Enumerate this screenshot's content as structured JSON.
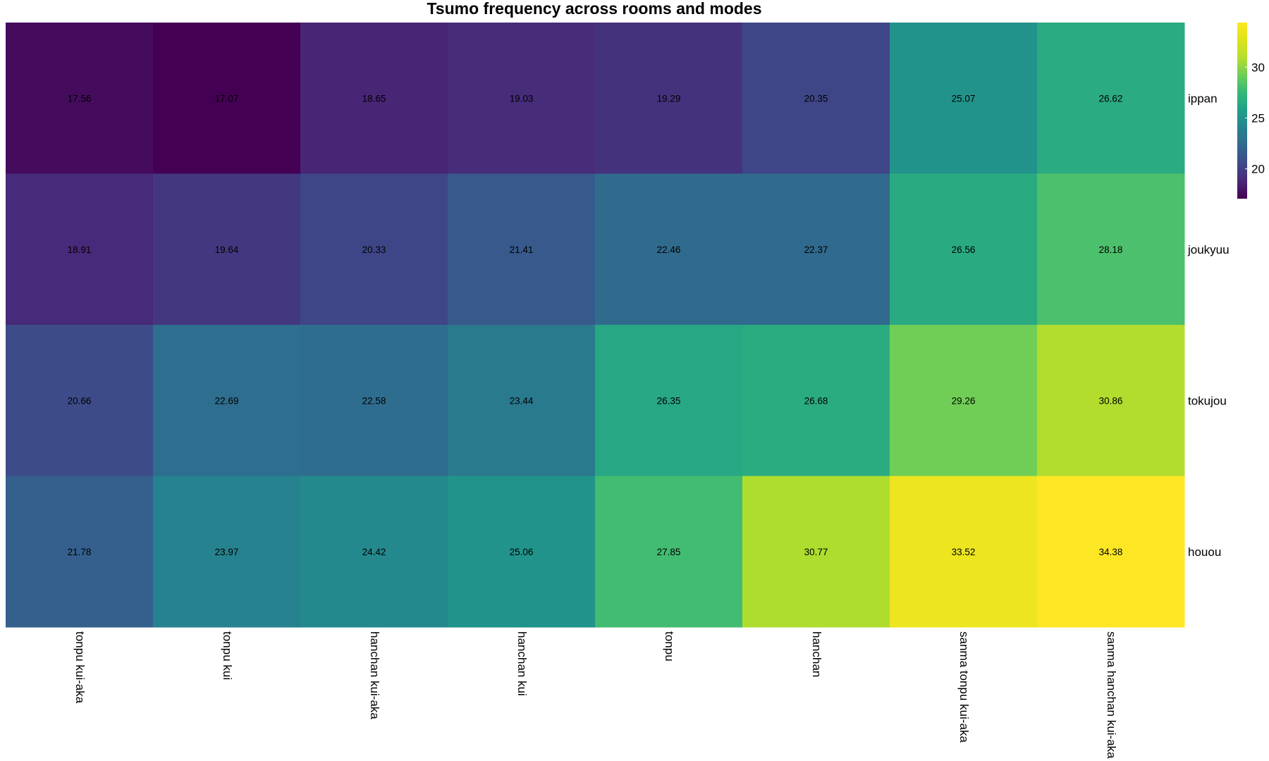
{
  "chart_data": {
    "type": "heatmap",
    "title": "Tsumo frequency across rooms and modes",
    "rows": [
      "ippan",
      "joukyuu",
      "tokujou",
      "houou"
    ],
    "columns": [
      "tonpu kui-aka",
      "tonpu kui",
      "hanchan kui-aka",
      "hanchan kui",
      "tonpu",
      "hanchan",
      "sanma tonpu kui-aka",
      "sanma hanchan kui-aka"
    ],
    "values": [
      [
        17.56,
        17.07,
        18.65,
        19.03,
        19.29,
        20.35,
        25.07,
        26.62
      ],
      [
        18.91,
        19.64,
        20.33,
        21.41,
        22.46,
        22.37,
        26.56,
        28.18
      ],
      [
        20.66,
        22.69,
        22.58,
        23.44,
        26.35,
        26.68,
        29.26,
        30.86
      ],
      [
        21.78,
        23.97,
        24.42,
        25.06,
        27.85,
        30.77,
        33.52,
        34.38
      ]
    ],
    "color_scale": "viridis",
    "value_range": [
      17.07,
      34.38
    ],
    "legend": {
      "position": "right",
      "ticks": [
        20,
        25,
        30
      ]
    }
  }
}
